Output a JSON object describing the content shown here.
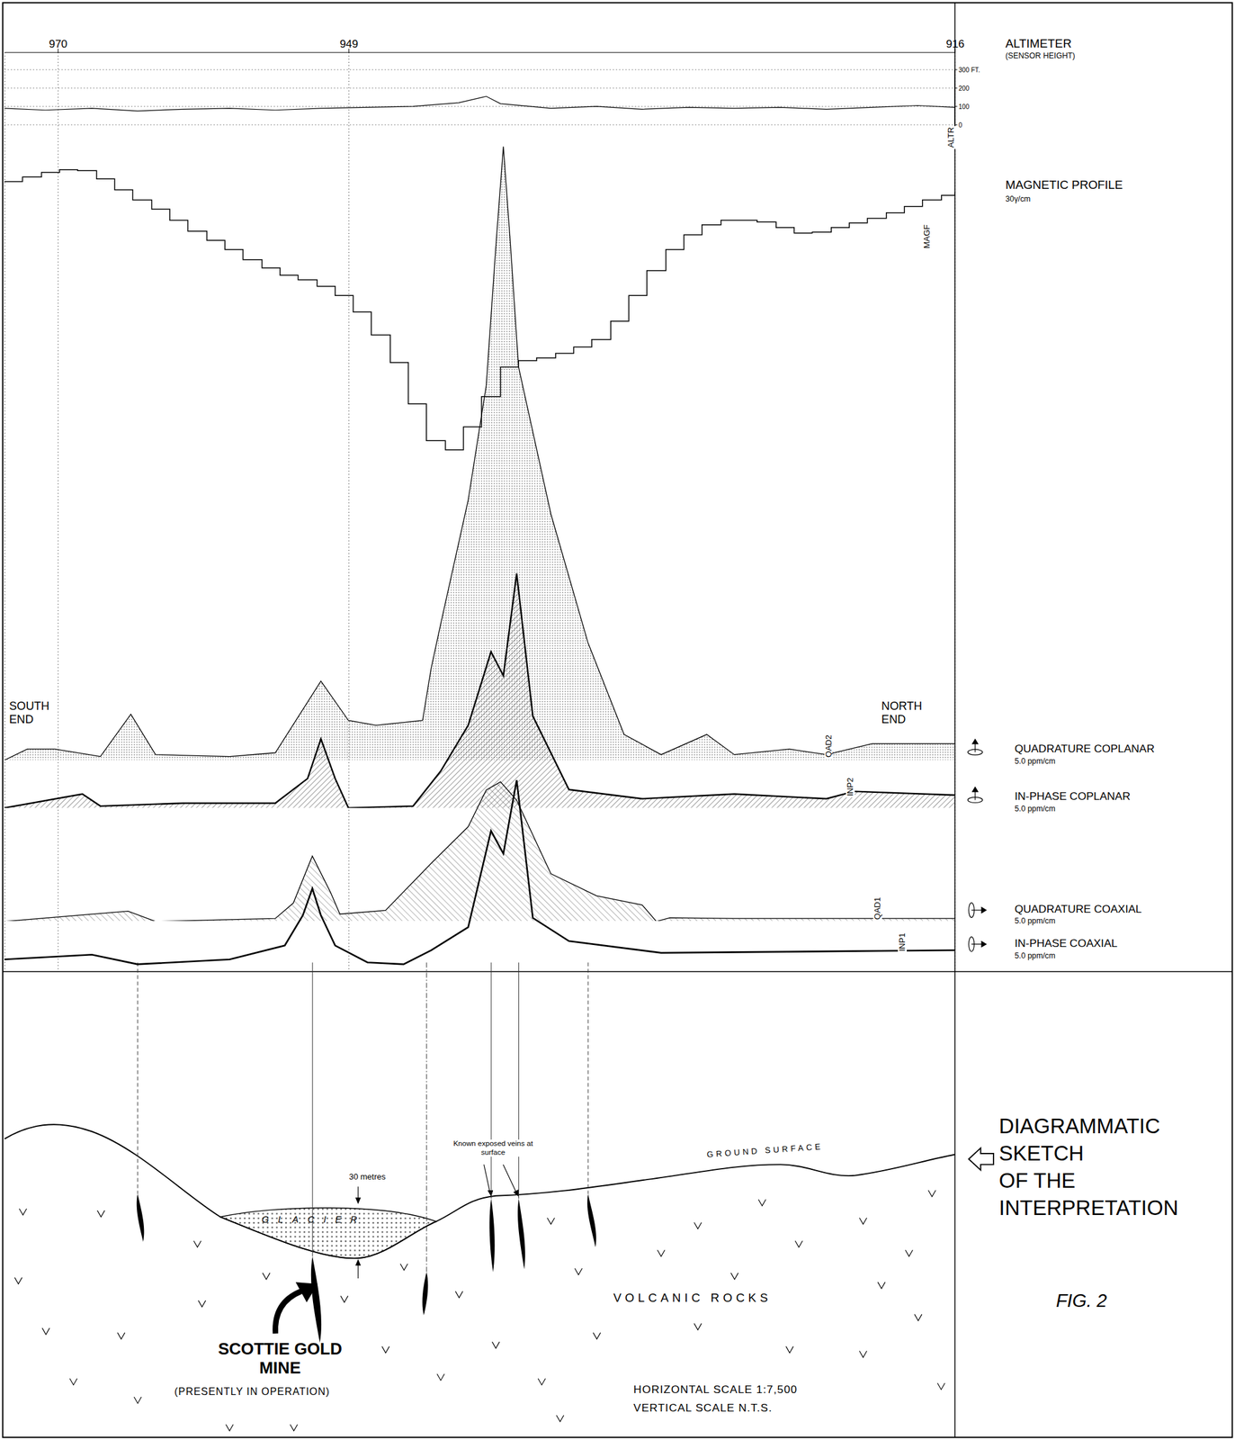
{
  "chart_data": [
    {
      "type": "line",
      "title": "ALTIMETER",
      "subtitle": "(SENSOR HEIGHT)",
      "trace_label": "ALTR",
      "x": [
        0,
        4.3,
        9.2,
        14.0,
        18.8,
        23.7,
        28.5,
        33.3,
        38.2,
        43.0,
        47.8,
        50.7,
        52.2,
        57.5,
        62.3,
        67.1,
        72.0,
        76.8,
        81.6,
        86.5,
        91.3,
        96.1,
        100
      ],
      "values": [
        90,
        80,
        90,
        75,
        85,
        90,
        80,
        90,
        95,
        100,
        120,
        155,
        115,
        90,
        100,
        85,
        95,
        90,
        95,
        85,
        95,
        105,
        95
      ],
      "color": "#000000",
      "ylim": [
        0,
        300
      ],
      "yticks": [
        0,
        100,
        200,
        {
          "value": 300,
          "label": "300 FT."
        }
      ],
      "grid": true
    },
    {
      "type": "step",
      "title": "MAGNETIC PROFILE",
      "subtitle": "30γ/cm",
      "trace_label": "MAGF",
      "x": [
        0,
        1.9,
        3.9,
        5.8,
        7.7,
        9.7,
        11.6,
        13.5,
        15.5,
        17.4,
        19.3,
        21.3,
        23.2,
        25.1,
        27.1,
        29.0,
        30.9,
        32.9,
        34.8,
        36.7,
        38.6,
        40.6,
        42.5,
        44.4,
        46.4,
        48.3,
        50.2,
        52.2,
        54.1,
        56.0,
        58.0,
        59.9,
        61.8,
        63.8,
        65.7,
        67.6,
        69.6,
        71.5,
        73.4,
        75.4,
        77.3,
        79.2,
        81.2,
        83.1,
        85.0,
        87.0,
        88.9,
        90.8,
        92.8,
        94.7,
        96.6,
        98.6,
        100
      ],
      "values": [
        302,
        307,
        312,
        315,
        314,
        305,
        293,
        282,
        272,
        260,
        248,
        238,
        228,
        217,
        208,
        200,
        195,
        188,
        178,
        160,
        135,
        105,
        60,
        20,
        10,
        35,
        68,
        100,
        107,
        110,
        115,
        122,
        130,
        150,
        178,
        205,
        228,
        244,
        255,
        260,
        260,
        258,
        252,
        246,
        247,
        252,
        257,
        262,
        268,
        275,
        282,
        287,
        290
      ],
      "color": "#000000",
      "ylim": [
        0,
        350
      ],
      "tick_labels": false
    },
    {
      "type": "area",
      "title": "QUADRATURE COPLANAR",
      "subtitle": "5.0 ppm/cm",
      "trace_label": "QAD2",
      "x": [
        0,
        2.4,
        5.3,
        10.1,
        13.3,
        15.9,
        23.7,
        28.5,
        33.3,
        36.2,
        39.1,
        44.0,
        44.9,
        45.9,
        48.8,
        50.7,
        51.7,
        52.5,
        53.2,
        54.1,
        57.5,
        61.4,
        65.2,
        69.1,
        73.9,
        76.8,
        82.6,
        86.5,
        91.3,
        100
      ],
      "values": [
        0,
        3,
        3,
        1,
        12.5,
        1.5,
        1,
        2,
        21.5,
        10.8,
        9.5,
        10.8,
        25,
        37,
        70.8,
        102,
        139.5,
        167,
        142,
        107,
        67,
        32,
        7,
        1.5,
        7,
        1.5,
        3,
        1.5,
        4.5,
        4.5
      ],
      "color": "#000000",
      "ylim": [
        0,
        170
      ],
      "tick_labels": false
    },
    {
      "type": "area",
      "title": "IN-PHASE COPLANAR",
      "subtitle": "5.0 ppm/cm",
      "trace_label": "INP2",
      "x": [
        0,
        8.2,
        10.1,
        18.8,
        28.5,
        31.9,
        33.3,
        34.8,
        36.2,
        43.0,
        45.9,
        48.8,
        51.2,
        52.5,
        53.9,
        55.6,
        59.4,
        67.1,
        76.8,
        86.5,
        89.4,
        100
      ],
      "values": [
        0,
        3.8,
        0.5,
        1.3,
        1.3,
        8,
        18.8,
        8,
        0,
        0.5,
        10,
        22.5,
        42.5,
        36,
        63.8,
        25,
        5,
        2.5,
        3.8,
        2.5,
        4.5,
        3.5
      ],
      "color": "#000000",
      "ylim": [
        0,
        65
      ],
      "tick_labels": false
    },
    {
      "type": "area",
      "title": "QUADRATURE COAXIAL",
      "subtitle": "5.0 ppm/cm",
      "trace_label": "QAD1",
      "x": [
        0,
        13.0,
        15.9,
        28.5,
        30.4,
        32.4,
        34.3,
        35.3,
        40.1,
        44.9,
        48.8,
        50.7,
        52.2,
        53.9,
        57.5,
        62.3,
        67.1,
        68.6,
        70.0,
        76.8,
        100
      ],
      "values": [
        0,
        2.8,
        0,
        0.8,
        5,
        17.8,
        8,
        2,
        3,
        15.8,
        25.8,
        35.8,
        38,
        33,
        13,
        7,
        4.5,
        0,
        1,
        0.8,
        0.8
      ],
      "color": "#000000",
      "ylim": [
        0,
        40
      ],
      "tick_labels": false
    },
    {
      "type": "line",
      "title": "IN-PHASE COAXIAL",
      "subtitle": "5.0 ppm/cm",
      "trace_label": "INP1",
      "x": [
        0,
        9.2,
        14.0,
        23.7,
        29.5,
        31.4,
        32.4,
        33.3,
        34.8,
        38.2,
        42.0,
        44.9,
        48.8,
        51.2,
        52.5,
        53.9,
        55.6,
        59.4,
        69.1,
        100
      ],
      "values": [
        0,
        1.3,
        -1.3,
        0,
        3.8,
        12,
        19.3,
        12,
        3.8,
        -0.8,
        -1.3,
        2.5,
        8.8,
        35,
        28.8,
        48.8,
        11.3,
        5,
        1.8,
        2.5
      ],
      "color": "#000000",
      "ylim": [
        -2,
        50
      ],
      "tick_labels": false
    }
  ],
  "x_axis": {
    "xlim": [
      0,
      100
    ],
    "xticks": [
      {
        "value": 5.6,
        "label": "970"
      },
      {
        "value": 36.2,
        "label": "949"
      },
      {
        "value": 100,
        "label": "916"
      }
    ],
    "grid": true
  },
  "profile_labels": {
    "south": "SOUTH END",
    "north": "NORTH END"
  },
  "sketch": {
    "title_lines": [
      "DIAGRAMMATIC",
      "SKETCH",
      "OF THE",
      "INTERPRETATION"
    ],
    "figure": "FIG. 2",
    "conductors_x": [
      14.0,
      32.4,
      44.4,
      51.2,
      54.1,
      61.4
    ],
    "labels": {
      "veins": "Known exposed veins at surface",
      "thickness": "30 metres",
      "ground": "GROUND SURFACE",
      "glacier": "GLACIER",
      "rocks": "VOLCANIC ROCKS",
      "mine": "SCOTTIE GOLD MINE",
      "mine_status": "(PRESENTLY IN OPERATION)",
      "hscale": "HORIZONTAL SCALE 1:7,500",
      "vscale": "VERTICAL SCALE N.T.S."
    }
  }
}
